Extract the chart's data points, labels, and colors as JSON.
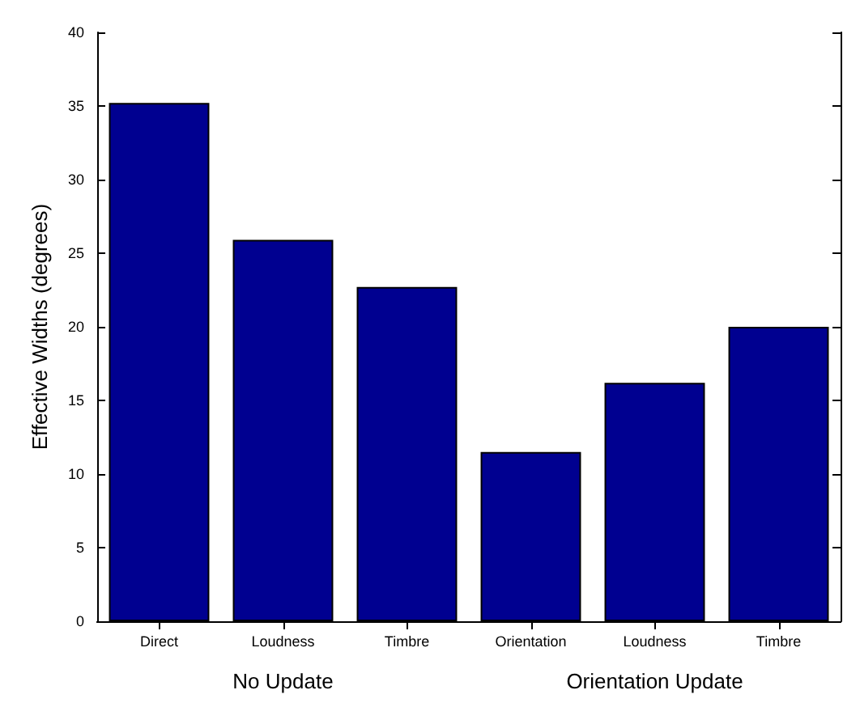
{
  "chart_data": {
    "type": "bar",
    "ylabel": "Effective Widths (degrees)",
    "categories": [
      "Direct",
      "Loudness",
      "Timbre",
      "Orientation",
      "Loudness",
      "Timbre"
    ],
    "values": [
      35.2,
      25.9,
      22.7,
      11.5,
      16.2,
      20
    ],
    "color": "#000090",
    "ylim": [
      0,
      40
    ],
    "yticks": [
      0,
      5,
      10,
      15,
      20,
      25,
      30,
      35,
      40
    ],
    "annotations": [
      "No Update",
      "Orientation Update"
    ]
  }
}
